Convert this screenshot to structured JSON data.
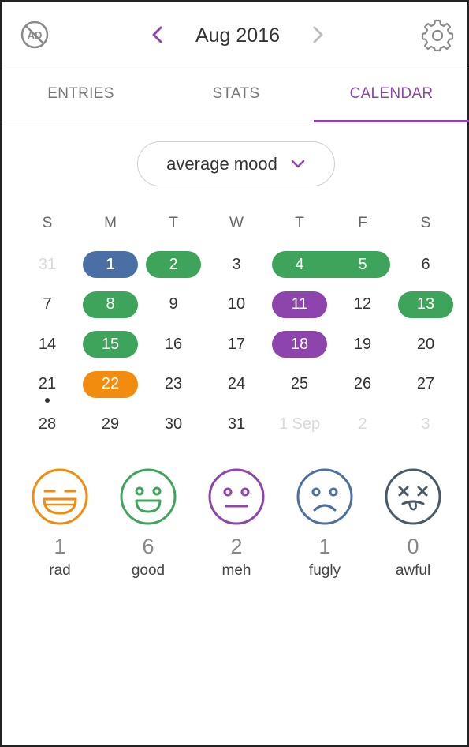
{
  "header": {
    "title": "Aug 2016",
    "accent": "#8e44ad"
  },
  "tabs": [
    {
      "label": "ENTRIES",
      "active": false
    },
    {
      "label": "STATS",
      "active": false
    },
    {
      "label": "CALENDAR",
      "active": true
    }
  ],
  "filter": {
    "selected": "average mood"
  },
  "calendar": {
    "weekdays": [
      "S",
      "M",
      "T",
      "W",
      "T",
      "F",
      "S"
    ],
    "weeks": [
      [
        {
          "d": "31",
          "faded": true
        },
        {
          "d": "1",
          "mood": "fugly",
          "today": true
        },
        {
          "d": "2",
          "mood": "good"
        },
        {
          "d": "3"
        },
        {
          "d": "4",
          "mood": "good"
        },
        {
          "d": "5",
          "mood": "good"
        },
        {
          "d": "6"
        }
      ],
      [
        {
          "d": "7"
        },
        {
          "d": "8",
          "mood": "good"
        },
        {
          "d": "9"
        },
        {
          "d": "10"
        },
        {
          "d": "11",
          "mood": "meh"
        },
        {
          "d": "12"
        },
        {
          "d": "13",
          "mood": "good"
        }
      ],
      [
        {
          "d": "14"
        },
        {
          "d": "15",
          "mood": "good"
        },
        {
          "d": "16"
        },
        {
          "d": "17"
        },
        {
          "d": "18",
          "mood": "meh"
        },
        {
          "d": "19"
        },
        {
          "d": "20"
        }
      ],
      [
        {
          "d": "21",
          "dot": true
        },
        {
          "d": "22",
          "mood": "rad"
        },
        {
          "d": "23"
        },
        {
          "d": "24"
        },
        {
          "d": "25"
        },
        {
          "d": "26"
        },
        {
          "d": "27"
        }
      ],
      [
        {
          "d": "28"
        },
        {
          "d": "29"
        },
        {
          "d": "30"
        },
        {
          "d": "31"
        },
        {
          "d": "1 Sep",
          "faded": true
        },
        {
          "d": "2",
          "faded": true
        },
        {
          "d": "3",
          "faded": true
        }
      ]
    ]
  },
  "colors": {
    "rad": "#f28c0f",
    "good": "#3fa45b",
    "meh": "#8e44ad",
    "fugly": "#4a6fa5",
    "awful": "#4a5a66"
  },
  "moods": [
    {
      "name": "rad",
      "count": "1",
      "icon": "laughing-face-icon"
    },
    {
      "name": "good",
      "count": "6",
      "icon": "smiling-face-icon"
    },
    {
      "name": "meh",
      "count": "2",
      "icon": "neutral-face-icon"
    },
    {
      "name": "fugly",
      "count": "1",
      "icon": "sad-face-icon"
    },
    {
      "name": "awful",
      "count": "0",
      "icon": "dead-face-icon"
    }
  ]
}
